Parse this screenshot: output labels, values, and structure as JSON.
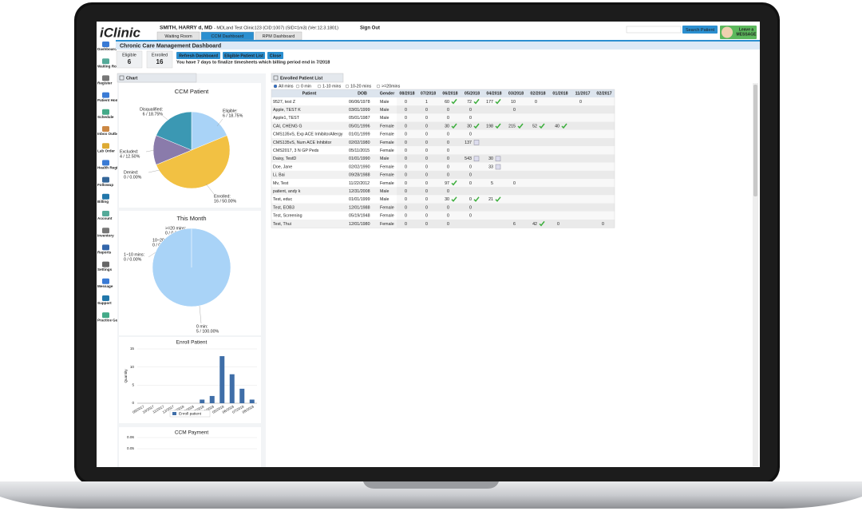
{
  "header": {
    "logo": "iClinic",
    "user": "SMITH, HARRY d, MD",
    "clinic": "- MDLand Test Clinic123 (CID:1007) (SID=1m3) (Ver:12.3.1801)",
    "sign_out": "Sign Out",
    "tabs": [
      "Waiting Room",
      "CCM Dashboard",
      "RPM Dashboard"
    ],
    "active_tab": 1,
    "search": "Search Patient",
    "message": [
      "Leave a",
      "MESSAGE"
    ]
  },
  "sidebar": [
    "Dashboard",
    "Waiting Room",
    "Register",
    "Patient Home",
    "Schedule",
    "Inbox Outbox",
    "Lab Order",
    "Health Registry",
    "Followup",
    "Billing",
    "Account",
    "Inventory",
    "Reports",
    "Settings",
    "Message",
    "Support",
    "Practice Guideline"
  ],
  "page_title": "Chronic Care Management Dashboard",
  "stats": [
    {
      "label": "Eligible",
      "value": 6
    },
    {
      "label": "Enrolled",
      "value": 16
    }
  ],
  "buttons": [
    "Refresh Dashboard",
    "Eligible Patient List",
    "Close"
  ],
  "notice": "You have 7 days to finalize timesheets which billing period end in 7/2018",
  "chart_panel": "Chart",
  "list_panel": "Enrolled Patient List",
  "filters": [
    "All mins",
    "0 min",
    "1-10 mins",
    "10-20 mins",
    ">=20mins"
  ],
  "selected_filter": 0,
  "table": {
    "columns": [
      "Patient",
      "DOB",
      "Gender",
      "08/2018",
      "07/2018",
      "06/2018",
      "05/2018",
      "04/2018",
      "03/2018",
      "02/2018",
      "01/2018",
      "11/2017",
      "02/2017"
    ],
    "rows": [
      {
        "patient": "9527, test Z",
        "dob": "06/06/1978",
        "gender": "Male",
        "months": [
          0,
          1,
          60,
          72,
          177,
          10,
          0,
          null,
          0,
          null
        ],
        "icons": [
          null,
          null,
          "check",
          "check",
          "check",
          null,
          null,
          null,
          null,
          null
        ]
      },
      {
        "patient": "Apple, TEST K",
        "dob": "03/01/1999",
        "gender": "Male",
        "months": [
          0,
          0,
          0,
          0,
          null,
          0,
          null,
          null,
          null,
          null
        ],
        "icons": [
          null,
          null,
          null,
          null,
          null,
          null,
          null,
          null,
          null,
          null
        ]
      },
      {
        "patient": "Apple1, TEST",
        "dob": "05/01/1987",
        "gender": "Male",
        "months": [
          0,
          0,
          0,
          0,
          null,
          null,
          null,
          null,
          null,
          null
        ],
        "icons": [
          null,
          null,
          null,
          null,
          null,
          null,
          null,
          null,
          null,
          null
        ]
      },
      {
        "patient": "CAI, CHENG G",
        "dob": "05/01/1996",
        "gender": "Female",
        "months": [
          0,
          0,
          30,
          30,
          198,
          215,
          52,
          40,
          null,
          null
        ],
        "icons": [
          null,
          null,
          "check",
          "check",
          "check",
          "check",
          "check",
          "check",
          null,
          null
        ]
      },
      {
        "patient": "CMS135vS, Exp ACE InhibitorAllergy",
        "dob": "01/01/1999",
        "gender": "Female",
        "months": [
          0,
          0,
          0,
          0,
          null,
          null,
          null,
          null,
          null,
          null
        ],
        "icons": [
          null,
          null,
          null,
          null,
          null,
          null,
          null,
          null,
          null,
          null
        ]
      },
      {
        "patient": "CMS135vS, Num ACE Inhibitor",
        "dob": "02/02/1980",
        "gender": "Female",
        "months": [
          0,
          0,
          0,
          137,
          null,
          null,
          null,
          null,
          null,
          null
        ],
        "icons": [
          null,
          null,
          null,
          "note",
          null,
          null,
          null,
          null,
          null,
          null
        ]
      },
      {
        "patient": "CMS2017, 3 N GP Peds",
        "dob": "05/11/2015",
        "gender": "Female",
        "months": [
          0,
          0,
          0,
          null,
          null,
          null,
          null,
          null,
          null,
          null
        ],
        "icons": [
          null,
          null,
          null,
          null,
          null,
          null,
          null,
          null,
          null,
          null
        ]
      },
      {
        "patient": "Daisy, TestD",
        "dob": "01/01/1990",
        "gender": "Male",
        "months": [
          0,
          0,
          0,
          543,
          30,
          null,
          null,
          null,
          null,
          null
        ],
        "icons": [
          null,
          null,
          null,
          "note",
          "note",
          null,
          null,
          null,
          null,
          null
        ]
      },
      {
        "patient": "Doe, Jane",
        "dob": "02/02/1990",
        "gender": "Female",
        "months": [
          0,
          0,
          0,
          0,
          33,
          null,
          null,
          null,
          null,
          null
        ],
        "icons": [
          null,
          null,
          null,
          null,
          "note",
          null,
          null,
          null,
          null,
          null
        ]
      },
      {
        "patient": "Li, Bai",
        "dob": "09/28/1988",
        "gender": "Female",
        "months": [
          0,
          0,
          0,
          0,
          null,
          null,
          null,
          null,
          null,
          null
        ],
        "icons": [
          null,
          null,
          null,
          null,
          null,
          null,
          null,
          null,
          null,
          null
        ]
      },
      {
        "patient": "Mv, Test",
        "dob": "11/22/2012",
        "gender": "Female",
        "months": [
          0,
          0,
          97,
          0,
          5,
          0,
          null,
          null,
          null,
          null
        ],
        "icons": [
          null,
          null,
          "check",
          null,
          null,
          null,
          null,
          null,
          null,
          null
        ]
      },
      {
        "patient": "patient, andy k",
        "dob": "12/31/2008",
        "gender": "Male",
        "months": [
          0,
          0,
          0,
          null,
          null,
          null,
          null,
          null,
          null,
          null
        ],
        "icons": [
          null,
          null,
          null,
          null,
          null,
          null,
          null,
          null,
          null,
          null
        ]
      },
      {
        "patient": "Test, educ",
        "dob": "01/01/1999",
        "gender": "Male",
        "months": [
          0,
          0,
          30,
          0,
          21,
          null,
          null,
          null,
          null,
          null
        ],
        "icons": [
          null,
          null,
          "check",
          "check",
          "check",
          null,
          null,
          null,
          null,
          null
        ]
      },
      {
        "patient": "Test, EOB3",
        "dob": "12/01/1988",
        "gender": "Female",
        "months": [
          0,
          0,
          0,
          0,
          null,
          null,
          null,
          null,
          null,
          null
        ],
        "icons": [
          null,
          null,
          null,
          null,
          null,
          null,
          null,
          null,
          null,
          null
        ]
      },
      {
        "patient": "Test, Screening",
        "dob": "05/19/1948",
        "gender": "Female",
        "months": [
          0,
          0,
          0,
          0,
          null,
          null,
          null,
          null,
          null,
          null
        ],
        "icons": [
          null,
          null,
          null,
          null,
          null,
          null,
          null,
          null,
          null,
          null
        ]
      },
      {
        "patient": "Test, Thui",
        "dob": "12/01/1980",
        "gender": "Female",
        "months": [
          0,
          0,
          0,
          null,
          null,
          6,
          42,
          0,
          null,
          0
        ],
        "icons": [
          null,
          null,
          null,
          null,
          null,
          null,
          "check",
          null,
          null,
          null
        ]
      }
    ]
  },
  "chart_data": [
    {
      "type": "pie",
      "title": "CCM Patient",
      "categories": [
        "Eligible:",
        "Enrolled:",
        "Denied:",
        "Excluded:",
        "Disqualified:"
      ],
      "values": [
        18.75,
        50,
        0,
        12.5,
        18.75
      ],
      "value_labels": [
        "6 / 18.75%",
        "16 / 50.00%",
        "0 / 0.00%",
        "4 / 12.50%",
        "6 / 18.75%"
      ],
      "colors": [
        "#a9d3f7",
        "#f2c143",
        "#e07b7b",
        "#8a7bab",
        "#3b98b3"
      ]
    },
    {
      "type": "pie",
      "title": "This Month",
      "categories": [
        ">=20 mins:",
        "10~20 mins:",
        "1~10 mins:",
        "0 min:"
      ],
      "values": [
        0,
        0,
        0,
        100
      ],
      "value_labels": [
        "0 / 0.00%",
        "0 / 0.00%",
        "0 / 0.00%",
        "5 / 100.00%"
      ],
      "colors": [
        "#f2c143",
        "#8a7bab",
        "#3b98b3",
        "#a9d3f7"
      ]
    },
    {
      "type": "bar",
      "title": "Enroll Patient",
      "y_label": "Quantity",
      "categories": [
        "09/2017",
        "10/2017",
        "11/2017",
        "12/2017",
        "01/2018",
        "02/2018",
        "03/2018",
        "04/2018",
        "05/2018",
        "06/2018",
        "07/2018",
        "08/2018"
      ],
      "series": [
        {
          "name": "Enroll patient",
          "color": "#3f6ea8",
          "values": [
            0,
            0,
            0,
            0,
            0,
            0,
            1,
            2,
            13,
            8,
            4,
            1
          ]
        }
      ],
      "ylim": [
        0,
        15
      ],
      "yticks": [
        0,
        5,
        10,
        15
      ],
      "grid": true
    },
    {
      "type": "bar",
      "title": "CCM Payment",
      "ylim": [
        0,
        0.06
      ],
      "yticks": [
        0.05,
        0.06
      ],
      "grid": true
    }
  ]
}
